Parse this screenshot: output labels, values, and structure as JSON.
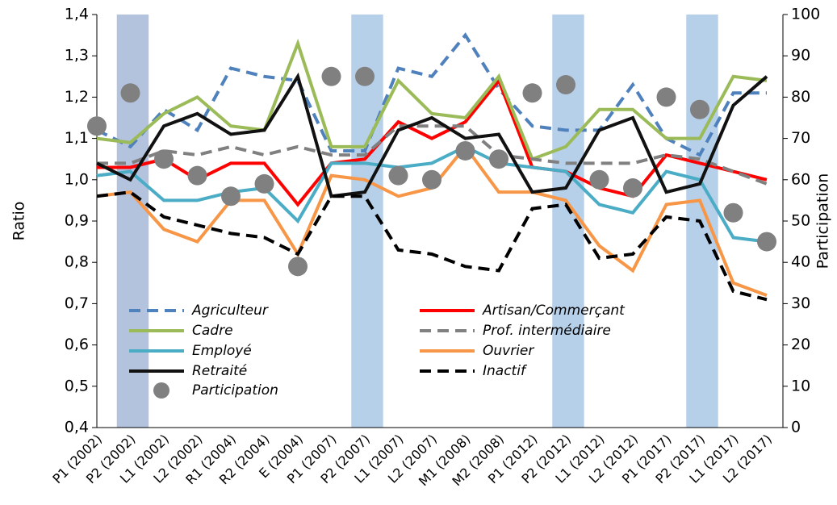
{
  "chart_data": {
    "type": "line",
    "y_label": "Ratio",
    "y2_label": "Participation",
    "categories": [
      "P1 (2002)",
      "P2 (2002)",
      "L1 (2002)",
      "L2 (2002)",
      "R1 (2004)",
      "R2 (2004)",
      "E (2004)",
      "P1 (2007)",
      "P2 (2007)",
      "L1 (2007)",
      "L2 (2007)",
      "M1 (2008)",
      "M2 (2008)",
      "P1 (2012)",
      "P2 (2012)",
      "L1 (2012)",
      "L2 (2012)",
      "P1 (2017)",
      "P2 (2017)",
      "L1 (2017)",
      "L2 (2017)"
    ],
    "highlighted": [
      1,
      8,
      14,
      18
    ],
    "highlight_colors": [
      "#b3c3de",
      "#b7d0ea",
      "#b7d0ea",
      "#b7d0ea"
    ],
    "ylim": [
      0.4,
      1.4
    ],
    "yticks": [
      {
        "value": 0.4,
        "label": "0,4"
      },
      {
        "value": 0.5,
        "label": "0,5"
      },
      {
        "value": 0.6,
        "label": "0,6"
      },
      {
        "value": 0.7,
        "label": "0,7"
      },
      {
        "value": 0.8,
        "label": "0,8"
      },
      {
        "value": 0.9,
        "label": "0,9"
      },
      {
        "value": 1.0,
        "label": "1,0"
      },
      {
        "value": 1.1,
        "label": "1,1"
      },
      {
        "value": 1.2,
        "label": "1,2"
      },
      {
        "value": 1.3,
        "label": "1,3"
      },
      {
        "value": 1.4,
        "label": "1,4"
      }
    ],
    "y2lim": [
      0,
      100
    ],
    "y2ticks": [
      0,
      10,
      20,
      30,
      40,
      50,
      60,
      70,
      80,
      90,
      100
    ],
    "series": [
      {
        "name": "Agriculteur",
        "color": "#4f81bd",
        "dash": true,
        "values": [
          1.12,
          1.08,
          1.17,
          1.12,
          1.27,
          1.25,
          1.24,
          1.07,
          1.07,
          1.27,
          1.25,
          1.35,
          1.22,
          1.13,
          1.12,
          1.12,
          1.23,
          1.1,
          1.06,
          1.21,
          1.21
        ]
      },
      {
        "name": "Artisan/Commerçant",
        "color": "#ff0000",
        "dash": false,
        "values": [
          1.03,
          1.03,
          1.05,
          1.0,
          1.04,
          1.04,
          0.94,
          1.04,
          1.05,
          1.14,
          1.1,
          1.14,
          1.24,
          1.03,
          1.02,
          0.98,
          0.96,
          1.06,
          1.04,
          1.02,
          1.0
        ]
      },
      {
        "name": "Cadre",
        "color": "#9bbb59",
        "dash": false,
        "values": [
          1.1,
          1.09,
          1.16,
          1.2,
          1.13,
          1.12,
          1.33,
          1.08,
          1.08,
          1.24,
          1.16,
          1.15,
          1.25,
          1.05,
          1.08,
          1.17,
          1.17,
          1.1,
          1.1,
          1.25,
          1.24
        ]
      },
      {
        "name": "Prof. intermédiaire",
        "color": "#808080",
        "dash": true,
        "values": [
          1.04,
          1.04,
          1.07,
          1.06,
          1.08,
          1.06,
          1.08,
          1.06,
          1.06,
          1.13,
          1.13,
          1.13,
          1.06,
          1.05,
          1.04,
          1.04,
          1.04,
          1.06,
          1.05,
          1.02,
          0.99
        ]
      },
      {
        "name": "Employé",
        "color": "#4bacc6",
        "dash": false,
        "values": [
          1.01,
          1.02,
          0.95,
          0.95,
          0.97,
          0.98,
          0.9,
          1.04,
          1.04,
          1.03,
          1.04,
          1.08,
          1.04,
          1.03,
          1.02,
          0.94,
          0.92,
          1.02,
          1.0,
          0.86,
          0.85
        ]
      },
      {
        "name": "Ouvrier",
        "color": "#f79646",
        "dash": false,
        "values": [
          0.96,
          0.97,
          0.88,
          0.85,
          0.95,
          0.95,
          0.82,
          1.01,
          1.0,
          0.96,
          0.98,
          1.08,
          0.97,
          0.97,
          0.95,
          0.84,
          0.78,
          0.94,
          0.95,
          0.75,
          0.72
        ]
      },
      {
        "name": "Retraité",
        "color": "#111111",
        "dash": false,
        "values": [
          1.04,
          1.0,
          1.13,
          1.16,
          1.11,
          1.12,
          1.25,
          0.96,
          0.97,
          1.12,
          1.15,
          1.1,
          1.11,
          0.97,
          0.98,
          1.12,
          1.15,
          0.97,
          0.99,
          1.18,
          1.25
        ]
      },
      {
        "name": "Inactif",
        "color": "#000000",
        "dash": true,
        "values": [
          0.96,
          0.97,
          0.91,
          0.89,
          0.87,
          0.86,
          0.82,
          0.96,
          0.96,
          0.83,
          0.82,
          0.79,
          0.78,
          0.93,
          0.94,
          0.81,
          0.82,
          0.91,
          0.9,
          0.73,
          0.71
        ]
      },
      {
        "name": "Participation",
        "color": "#808080",
        "marker": "circle",
        "axis": "y2",
        "values": [
          73,
          81,
          65,
          61,
          56,
          59,
          39,
          85,
          85,
          61,
          60,
          67,
          65,
          81,
          83,
          60,
          58,
          80,
          77,
          52,
          45
        ]
      }
    ]
  }
}
